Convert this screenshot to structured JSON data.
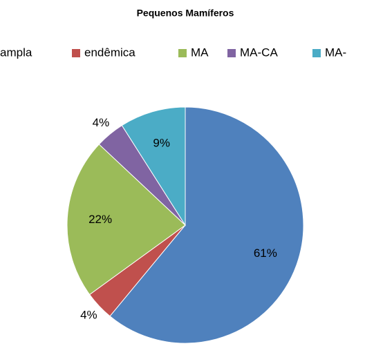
{
  "chart_data": {
    "type": "pie",
    "title": "Pequenos Mamíferos",
    "categories": [
      "ampla",
      "endêmica",
      "MA",
      "MA-CA",
      "MA-"
    ],
    "values": [
      61,
      4,
      22,
      4,
      9
    ],
    "value_labels": [
      "61%",
      "4%",
      "22%",
      "4%",
      "9%"
    ],
    "colors": [
      "#4f81bd",
      "#c0504d",
      "#9bbb59",
      "#8064a2",
      "#4bacc6"
    ],
    "legend": "top"
  }
}
